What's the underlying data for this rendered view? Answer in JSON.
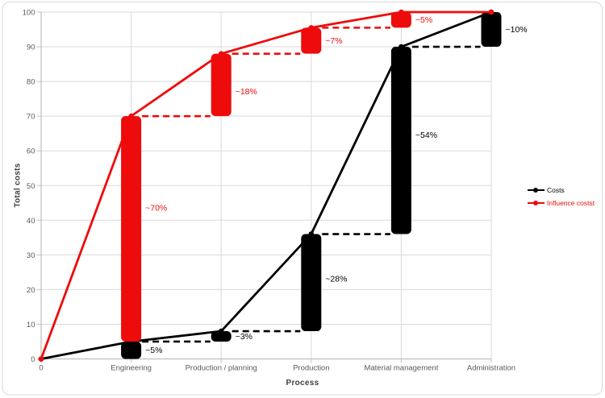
{
  "frame": {
    "background": "#ffffff",
    "border_color": "#d9d9d9"
  },
  "chart_data": {
    "type": "line",
    "title": "",
    "xlabel": "Process",
    "ylabel": "Total costs",
    "ylim": [
      0,
      100
    ],
    "ytick_step": 10,
    "grid": true,
    "legend_position": "right",
    "categories": [
      "0",
      "Engineering",
      "Production / planning",
      "Production",
      "Material management",
      "Administration"
    ],
    "axis": {
      "tick_color": "#595959",
      "line_color": "#bfbfbf",
      "grid_color": "#d9d9d9",
      "title_color": "#404040"
    },
    "series": [
      {
        "name": "Costs",
        "color": "#000000",
        "cumulative": [
          0,
          5,
          8,
          36,
          90,
          100
        ],
        "bars": [
          {
            "cat": 1,
            "from": 0,
            "to": 5,
            "label": "~5%"
          },
          {
            "cat": 2,
            "from": 5,
            "to": 8,
            "label": "~3%"
          },
          {
            "cat": 3,
            "from": 8,
            "to": 36,
            "label": "~28%",
            "ldy": -5
          },
          {
            "cat": 4,
            "from": 36,
            "to": 90,
            "label": "~54%",
            "ldy": -7
          },
          {
            "cat": 5,
            "from": 90,
            "to": 100,
            "label": "~10%"
          }
        ]
      },
      {
        "name": "Influence costst",
        "color": "#ee0b0b",
        "cumulative": [
          0,
          70,
          88,
          95.5,
          100,
          100
        ],
        "bars": [
          {
            "cat": 1,
            "from": 5,
            "to": 70,
            "label": "~70%",
            "ldy": -26
          },
          {
            "cat": 2,
            "from": 70,
            "to": 88,
            "label": "~18%",
            "ldy": 8
          },
          {
            "cat": 3,
            "from": 88,
            "to": 95.5,
            "label": "~7%"
          },
          {
            "cat": 4,
            "from": 95.5,
            "to": 100,
            "label": "~5%"
          }
        ]
      }
    ]
  }
}
